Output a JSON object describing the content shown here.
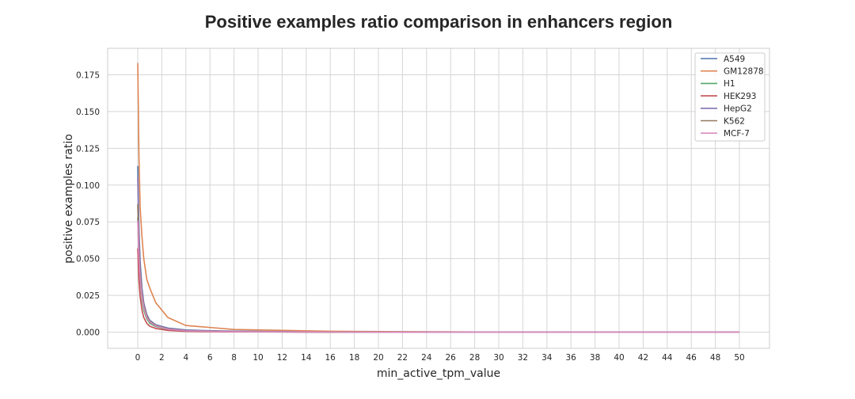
{
  "chart_data": {
    "type": "line",
    "title": "Positive examples ratio comparison in enhancers region",
    "xlabel": "min_active_tpm_value",
    "ylabel": "positive examples ratio",
    "xlim": [
      -2.5,
      52.5
    ],
    "ylim": [
      -0.011,
      0.193
    ],
    "xticks": [
      0,
      2,
      4,
      6,
      8,
      10,
      12,
      14,
      16,
      18,
      20,
      22,
      24,
      26,
      28,
      30,
      32,
      34,
      36,
      38,
      40,
      42,
      44,
      46,
      48,
      50
    ],
    "yticks": [
      0.0,
      0.025,
      0.05,
      0.075,
      0.1,
      0.125,
      0.15,
      0.175
    ],
    "ytick_labels": [
      "0.000",
      "0.025",
      "0.050",
      "0.075",
      "0.100",
      "0.125",
      "0.150",
      "0.175"
    ],
    "grid": true,
    "legend_position": "top-right",
    "series": [
      {
        "name": "A549",
        "color": "#4c72b0",
        "x": [
          0,
          0.1,
          0.2,
          0.35,
          0.5,
          0.75,
          1,
          1.5,
          2.5,
          4,
          6,
          8,
          12,
          16,
          20,
          30,
          40,
          50
        ],
        "y": [
          0.113,
          0.07,
          0.048,
          0.03,
          0.02,
          0.012,
          0.008,
          0.005,
          0.0028,
          0.0015,
          0.001,
          0.0007,
          0.0004,
          0.0002,
          0.0001,
          0.0,
          0.0,
          0.0
        ]
      },
      {
        "name": "GM12878",
        "color": "#dd8452",
        "x": [
          0,
          0.1,
          0.2,
          0.35,
          0.5,
          0.75,
          1,
          1.5,
          2.5,
          4,
          6,
          8,
          12,
          16,
          20,
          30,
          40,
          50
        ],
        "y": [
          0.183,
          0.12,
          0.085,
          0.065,
          0.05,
          0.036,
          0.03,
          0.02,
          0.01,
          0.0045,
          0.0032,
          0.0018,
          0.0012,
          0.0006,
          0.0004,
          0.0001,
          0.0,
          0.0
        ]
      },
      {
        "name": "H1",
        "color": "#55a868",
        "x": [
          0,
          0.1,
          0.2,
          0.35,
          0.5,
          0.75,
          1,
          1.5,
          2.5,
          4,
          6,
          8,
          12,
          16,
          20,
          30,
          40,
          50
        ],
        "y": [
          0.078,
          0.05,
          0.035,
          0.022,
          0.015,
          0.009,
          0.006,
          0.0038,
          0.0018,
          0.0008,
          0.0005,
          0.0003,
          0.0001,
          0.0,
          0.0,
          0.0,
          0.0,
          0.0
        ]
      },
      {
        "name": "HEK293",
        "color": "#c44e52",
        "x": [
          0,
          0.1,
          0.2,
          0.35,
          0.5,
          0.75,
          1,
          1.5,
          2.5,
          4,
          6,
          8,
          12,
          16,
          20,
          30,
          40,
          50
        ],
        "y": [
          0.057,
          0.035,
          0.024,
          0.015,
          0.01,
          0.006,
          0.004,
          0.0025,
          0.0012,
          0.0005,
          0.0003,
          0.0002,
          0.0001,
          0.0,
          0.0,
          0.0,
          0.0,
          0.0
        ]
      },
      {
        "name": "HepG2",
        "color": "#8172b3",
        "x": [
          0,
          0.1,
          0.2,
          0.35,
          0.5,
          0.75,
          1,
          1.5,
          2.5,
          4,
          6,
          8,
          12,
          16,
          20,
          30,
          40,
          50
        ],
        "y": [
          0.105,
          0.065,
          0.045,
          0.028,
          0.019,
          0.011,
          0.0075,
          0.0048,
          0.0024,
          0.0012,
          0.0008,
          0.0005,
          0.0003,
          0.0001,
          0.0,
          0.0,
          0.0,
          0.0
        ]
      },
      {
        "name": "K562",
        "color": "#937860",
        "x": [
          0,
          0.1,
          0.2,
          0.35,
          0.5,
          0.75,
          1,
          1.5,
          2.5,
          4,
          6,
          8,
          12,
          16,
          20,
          30,
          40,
          50
        ],
        "y": [
          0.087,
          0.055,
          0.04,
          0.026,
          0.018,
          0.011,
          0.0075,
          0.0045,
          0.0022,
          0.001,
          0.0007,
          0.0004,
          0.0002,
          0.0001,
          0.0,
          0.0,
          0.0,
          0.0
        ]
      },
      {
        "name": "MCF-7",
        "color": "#da8bc3",
        "x": [
          0,
          0.1,
          0.2,
          0.35,
          0.5,
          0.75,
          1,
          1.5,
          2.5,
          4,
          6,
          8,
          12,
          16,
          20,
          30,
          40,
          50
        ],
        "y": [
          0.076,
          0.05,
          0.036,
          0.024,
          0.017,
          0.01,
          0.007,
          0.0042,
          0.002,
          0.0009,
          0.0006,
          0.0004,
          0.0002,
          0.0001,
          0.0,
          0.0,
          0.0,
          0.0
        ]
      }
    ]
  }
}
